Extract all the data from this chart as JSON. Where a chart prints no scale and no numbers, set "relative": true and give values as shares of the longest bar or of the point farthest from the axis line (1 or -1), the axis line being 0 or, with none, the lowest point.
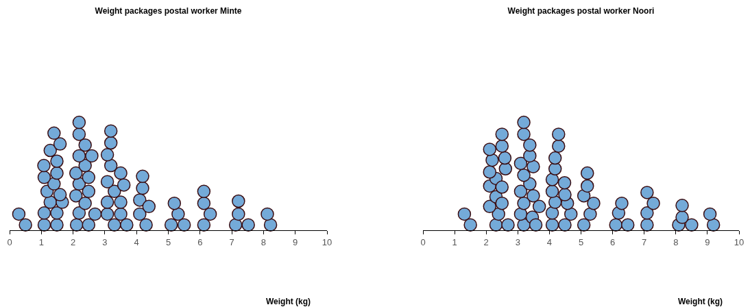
{
  "chart_data": [
    {
      "type": "scatter",
      "title": "Weight packages postal worker Minte",
      "xlabel": "Weight (kg)",
      "relative": true,
      "color": "#74aad8",
      "marker": "circle",
      "grid": false,
      "xlim": [
        0,
        10
      ],
      "xticks": [
        0,
        1,
        2,
        3,
        4,
        5,
        6,
        7,
        8,
        9,
        10
      ],
      "x": [
        0.29,
        0.5,
        1.09,
        1.09,
        1.49,
        1.49,
        1.28,
        1.66,
        1.59,
        1.18,
        1.4,
        1.09,
        1.49,
        1.08,
        1.49,
        1.28,
        1.59,
        1.4,
        2.11,
        2.19,
        2.49,
        2.69,
        2.09,
        2.38,
        2.49,
        2.19,
        2.09,
        2.49,
        2.38,
        2.19,
        2.59,
        2.38,
        2.19,
        2.19,
        3.08,
        3.3,
        3.5,
        3.69,
        3.08,
        3.5,
        3.3,
        3.08,
        3.6,
        3.5,
        3.19,
        3.08,
        3.19,
        3.19,
        4.1,
        4.3,
        4.1,
        4.39,
        4.19,
        4.19,
        5.09,
        5.5,
        5.31,
        5.19,
        6.12,
        6.32,
        6.12,
        6.12,
        7.12,
        7.52,
        7.21,
        7.21,
        8.22,
        8.12
      ],
      "values": [
        0.15,
        0.05,
        0.05,
        0.16,
        0.05,
        0.16,
        0.26,
        0.26,
        0.33,
        0.36,
        0.43,
        0.49,
        0.53,
        0.6,
        0.64,
        0.74,
        0.8,
        0.9,
        0.05,
        0.16,
        0.05,
        0.15,
        0.32,
        0.25,
        0.36,
        0.43,
        0.53,
        0.49,
        0.6,
        0.69,
        0.69,
        0.79,
        0.89,
        1.0,
        0.15,
        0.05,
        0.15,
        0.05,
        0.26,
        0.26,
        0.36,
        0.45,
        0.42,
        0.53,
        0.6,
        0.7,
        0.81,
        0.92,
        0.15,
        0.05,
        0.28,
        0.22,
        0.39,
        0.5,
        0.05,
        0.05,
        0.15,
        0.25,
        0.05,
        0.15,
        0.25,
        0.36,
        0.05,
        0.05,
        0.15,
        0.27,
        0.05,
        0.15
      ]
    },
    {
      "type": "scatter",
      "title": "Weight packages postal worker Noori",
      "xlabel": "Weight (kg)",
      "relative": true,
      "color": "#74aad8",
      "marker": "circle",
      "grid": false,
      "xlim": [
        0,
        10
      ],
      "xticks": [
        0,
        1,
        2,
        3,
        4,
        5,
        6,
        7,
        8,
        9,
        10
      ],
      "x": [
        1.31,
        1.5,
        2.31,
        2.69,
        2.39,
        2.11,
        2.31,
        2.5,
        2.11,
        2.31,
        2.5,
        2.11,
        2.19,
        2.11,
        2.61,
        2.59,
        2.5,
        2.5,
        3.19,
        3.09,
        3.19,
        3.09,
        3.46,
        3.57,
        3.68,
        3.49,
        3.38,
        3.19,
        3.09,
        3.49,
        3.38,
        3.38,
        3.19,
        3.19,
        4.09,
        4.09,
        4.18,
        4.09,
        4.09,
        4.18,
        4.18,
        4.29,
        4.29,
        4.49,
        4.68,
        4.57,
        4.49,
        4.48,
        5.09,
        5.29,
        5.4,
        5.09,
        5.2,
        5.2,
        6.1,
        6.48,
        6.19,
        6.29,
        7.09,
        7.09,
        7.29,
        7.09,
        8.09,
        8.5,
        8.2,
        8.2,
        9.19,
        9.08
      ],
      "values": [
        0.15,
        0.05,
        0.05,
        0.05,
        0.15,
        0.22,
        0.31,
        0.25,
        0.41,
        0.48,
        0.4,
        0.54,
        0.65,
        0.75,
        0.57,
        0.67,
        0.78,
        0.89,
        0.05,
        0.15,
        0.25,
        0.36,
        0.12,
        0.05,
        0.22,
        0.32,
        0.43,
        0.51,
        0.62,
        0.59,
        0.69,
        0.79,
        0.89,
        1.0,
        0.05,
        0.16,
        0.26,
        0.36,
        0.47,
        0.57,
        0.67,
        0.78,
        0.89,
        0.05,
        0.15,
        0.25,
        0.33,
        0.44,
        0.05,
        0.15,
        0.25,
        0.32,
        0.41,
        0.53,
        0.05,
        0.05,
        0.16,
        0.25,
        0.05,
        0.16,
        0.25,
        0.35,
        0.05,
        0.05,
        0.12,
        0.23,
        0.05,
        0.15
      ]
    }
  ]
}
